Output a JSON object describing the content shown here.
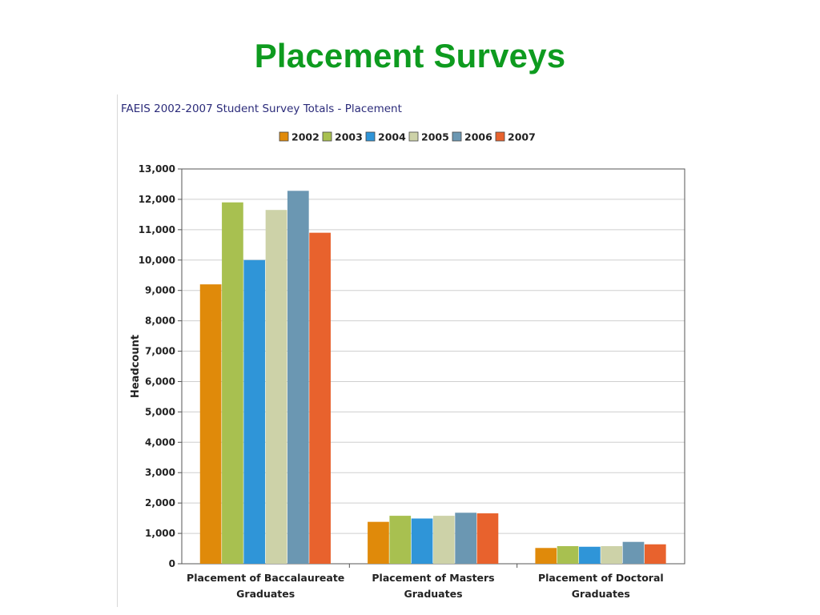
{
  "slide": {
    "title": "Placement Surveys"
  },
  "chart_data": {
    "type": "bar",
    "title": "FAEIS 2002-2007 Student Survey Totals - Placement",
    "ylabel": "Headcount",
    "xlabel": "",
    "ylim": [
      0,
      13000
    ],
    "yticks": [
      0,
      1000,
      2000,
      3000,
      4000,
      5000,
      6000,
      7000,
      8000,
      9000,
      10000,
      11000,
      12000,
      13000
    ],
    "ytick_labels": [
      "0",
      "1,000",
      "2,000",
      "3,000",
      "4,000",
      "5,000",
      "6,000",
      "7,000",
      "8,000",
      "9,000",
      "10,000",
      "11,000",
      "12,000",
      "13,000"
    ],
    "grid": true,
    "legend_position": "top",
    "categories": [
      [
        "Placement of Baccalaureate",
        "Graduates"
      ],
      [
        "Placement of Masters",
        "Graduates"
      ],
      [
        "Placement of Doctoral",
        "Graduates"
      ]
    ],
    "series": [
      {
        "name": "2002",
        "color": "#e08a0a",
        "values": [
          9200,
          1380,
          520
        ]
      },
      {
        "name": "2003",
        "color": "#a8c050",
        "values": [
          11900,
          1580,
          580
        ]
      },
      {
        "name": "2004",
        "color": "#2f95d8",
        "values": [
          10000,
          1490,
          560
        ]
      },
      {
        "name": "2005",
        "color": "#cdd2a8",
        "values": [
          11650,
          1580,
          580
        ]
      },
      {
        "name": "2006",
        "color": "#6b97b2",
        "values": [
          12280,
          1680,
          720
        ]
      },
      {
        "name": "2007",
        "color": "#e8622d",
        "values": [
          10900,
          1660,
          640
        ]
      }
    ]
  }
}
